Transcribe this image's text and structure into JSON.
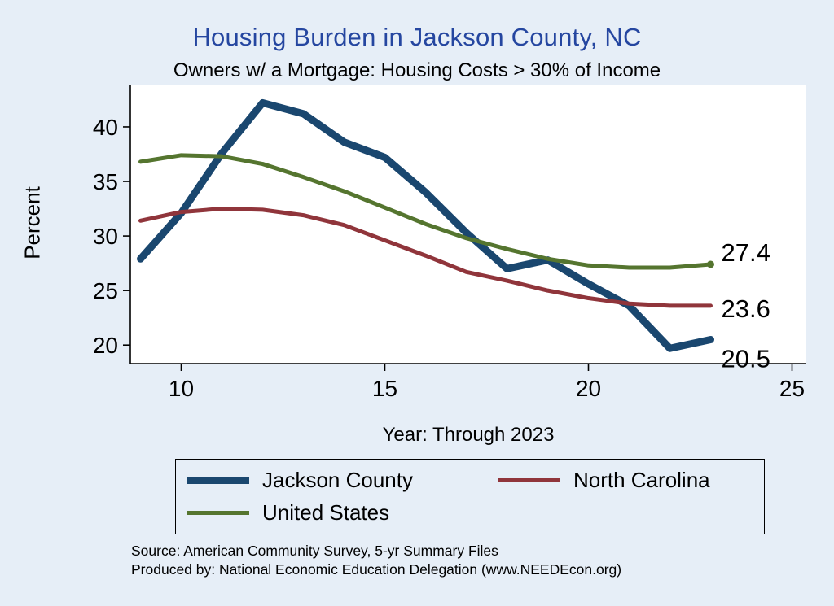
{
  "header": {
    "title": "Housing Burden in Jackson County, NC",
    "subtitle": "Owners w/ a Mortgage: Housing Costs > 30% of Income"
  },
  "chart_data": {
    "type": "line",
    "title": "Housing Burden in Jackson County, NC",
    "subtitle": "Owners w/ a Mortgage: Housing Costs > 30% of Income",
    "xlabel": "Year: Through 2023",
    "ylabel": "Percent",
    "x": [
      9,
      10,
      11,
      12,
      13,
      14,
      15,
      16,
      17,
      18,
      19,
      20,
      21,
      22,
      23
    ],
    "series": [
      {
        "name": "Jackson County",
        "color": "#1a476f",
        "line_width": 9,
        "values": [
          27.9,
          32.1,
          37.6,
          42.2,
          41.2,
          38.6,
          37.2,
          34.0,
          30.3,
          27.0,
          27.8,
          25.6,
          23.6,
          19.7,
          20.5
        ],
        "end_label": "20.5",
        "end_label_dy": 34,
        "end_marker": false
      },
      {
        "name": "North Carolina",
        "color": "#90353b",
        "line_width": 5,
        "values": [
          31.4,
          32.2,
          32.5,
          32.4,
          31.9,
          31.0,
          29.6,
          28.2,
          26.7,
          25.9,
          25.0,
          24.3,
          23.8,
          23.6,
          23.6
        ],
        "end_label": "23.6",
        "end_label_dy": 14,
        "end_marker": false
      },
      {
        "name": "United States",
        "color": "#55752f",
        "line_width": 5,
        "values": [
          36.8,
          37.4,
          37.3,
          36.6,
          35.4,
          34.1,
          32.6,
          31.1,
          29.8,
          28.8,
          27.9,
          27.3,
          27.1,
          27.1,
          27.4
        ],
        "end_label": "27.4",
        "end_label_dy": -4,
        "end_marker": true
      }
    ],
    "xticks": [
      10,
      15,
      20,
      25
    ],
    "yticks": [
      20,
      25,
      30,
      35,
      40
    ],
    "xlim": [
      8.75,
      25.35
    ],
    "ylim": [
      18.3,
      43.8
    ],
    "grid": false,
    "legend_position": "bottom"
  },
  "footer": {
    "source": "Source: American Community Survey, 5-yr Summary Files",
    "produced_by": "Produced by: National Economic Education Delegation (www.NEEDEcon.org)"
  },
  "colors": {
    "background": "#e6eef7",
    "title": "#2546a0",
    "axis": "#000000",
    "plot_background": "#ffffff"
  }
}
